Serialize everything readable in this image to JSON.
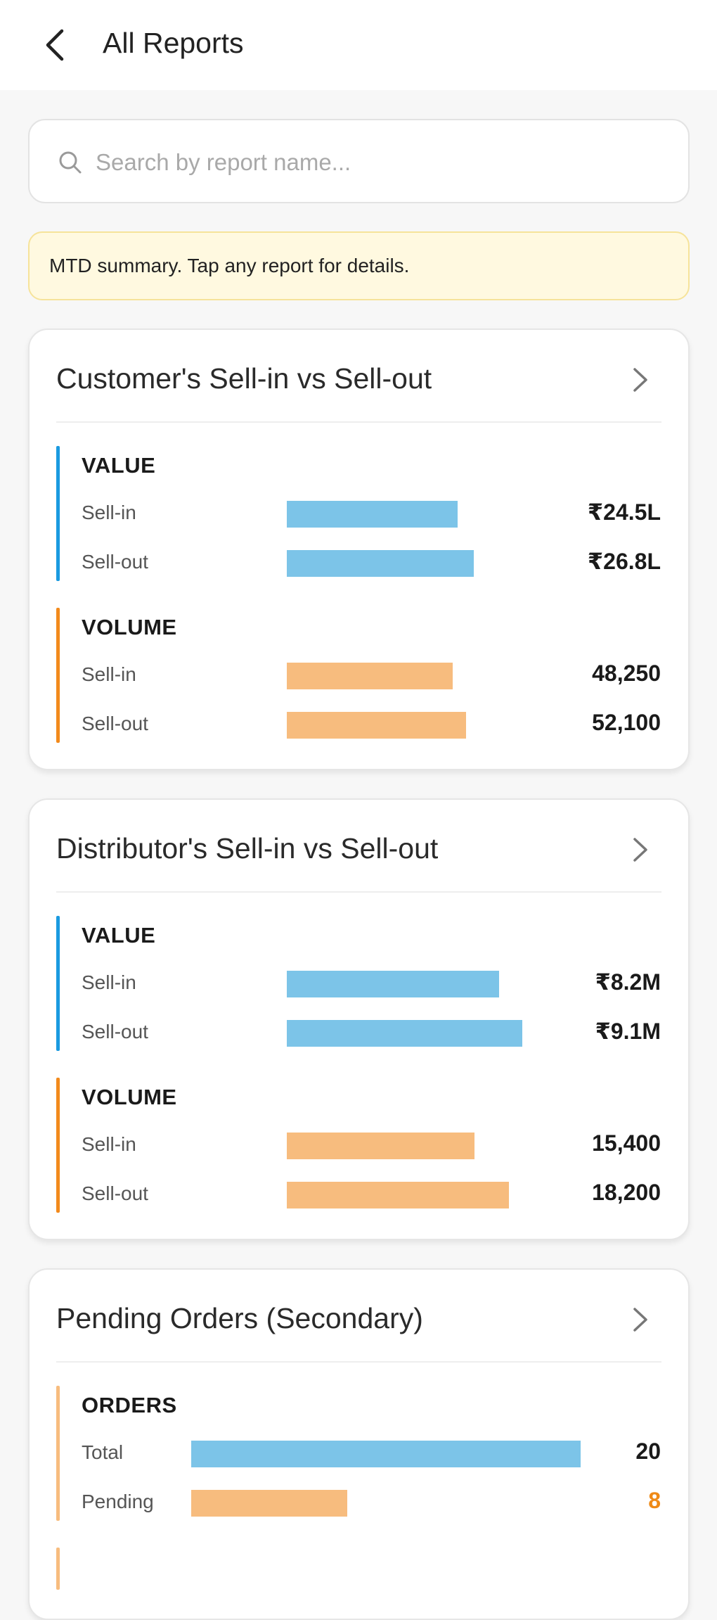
{
  "header": {
    "title": "All Reports"
  },
  "search": {
    "placeholder": "Search by report name..."
  },
  "notice": {
    "text": "MTD summary. Tap any report for details."
  },
  "colors": {
    "value_accent": "#1a9ae0",
    "volume_accent": "#f28a1c",
    "value_bar": "#7cc4e8",
    "volume_bar": "#f7bc7e",
    "pending_value": "#ef8a17"
  },
  "cards": [
    {
      "title": "Customer's Sell-in vs Sell-out",
      "sections": [
        {
          "label": "VALUE",
          "rows": [
            {
              "label": "Sell-in",
              "value": "₹24.5L",
              "amount": 24.5
            },
            {
              "label": "Sell-out",
              "value": "₹26.8L",
              "amount": 26.8
            }
          ]
        },
        {
          "label": "VOLUME",
          "rows": [
            {
              "label": "Sell-in",
              "value": "48,250",
              "amount": 48250
            },
            {
              "label": "Sell-out",
              "value": "52,100",
              "amount": 52100
            }
          ]
        }
      ]
    },
    {
      "title": "Distributor's Sell-in vs Sell-out",
      "sections": [
        {
          "label": "VALUE",
          "rows": [
            {
              "label": "Sell-in",
              "value": "₹8.2M",
              "amount": 8.2
            },
            {
              "label": "Sell-out",
              "value": "₹9.1M",
              "amount": 9.1
            }
          ]
        },
        {
          "label": "VOLUME",
          "rows": [
            {
              "label": "Sell-in",
              "value": "15,400",
              "amount": 15400
            },
            {
              "label": "Sell-out",
              "value": "18,200",
              "amount": 18200
            }
          ]
        }
      ]
    },
    {
      "title": "Pending Orders (Secondary)",
      "sections": [
        {
          "label": "ORDERS",
          "rows": [
            {
              "label": "Total",
              "value": "20",
              "amount": 20
            },
            {
              "label": "Pending",
              "value": "8",
              "amount": 8
            }
          ]
        }
      ]
    }
  ]
}
